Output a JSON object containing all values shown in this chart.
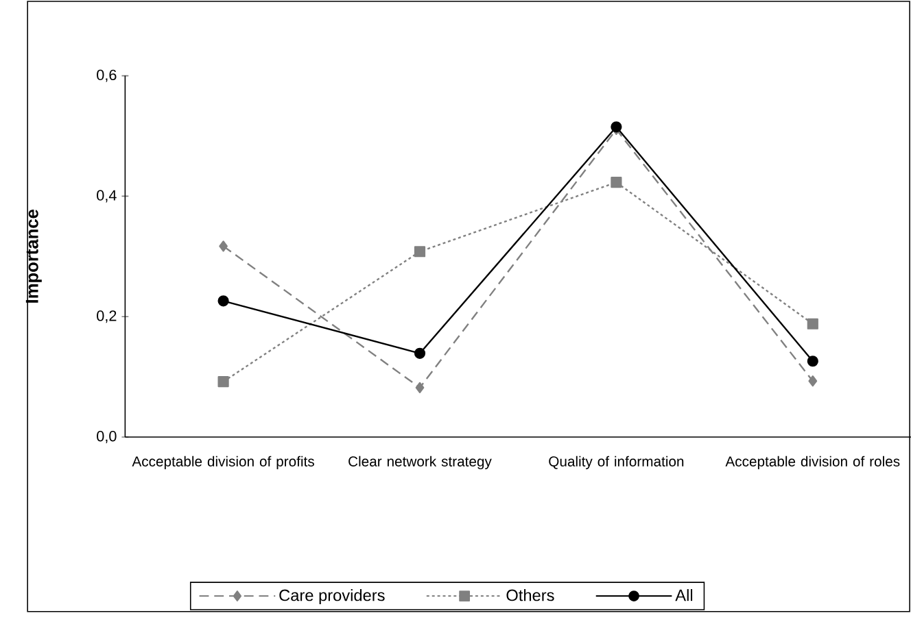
{
  "chart_data": {
    "type": "line",
    "ylabel": "Importance",
    "categories": [
      "Acceptable division of profits",
      "Clear network strategy",
      "Quality of information",
      "Acceptable division of roles"
    ],
    "series": [
      {
        "name": "Care providers",
        "color": "#808080",
        "marker": "diamond",
        "line_style": "dashed",
        "values": [
          0.317,
          0.082,
          0.511,
          0.093
        ]
      },
      {
        "name": "Others",
        "color": "#808080",
        "marker": "square",
        "line_style": "dotted",
        "values": [
          0.092,
          0.308,
          0.423,
          0.188
        ]
      },
      {
        "name": "All",
        "color": "#000000",
        "marker": "circle",
        "line_style": "solid",
        "values": [
          0.226,
          0.139,
          0.515,
          0.126
        ]
      }
    ],
    "ylim": [
      0,
      0.6
    ],
    "yticks": [
      {
        "value": 0,
        "label": "0,0"
      },
      {
        "value": 0.2,
        "label": "0,2"
      },
      {
        "value": 0.4,
        "label": "0,4"
      },
      {
        "value": 0.6,
        "label": "0,6"
      }
    ],
    "grid": false,
    "legend": "bottom"
  }
}
